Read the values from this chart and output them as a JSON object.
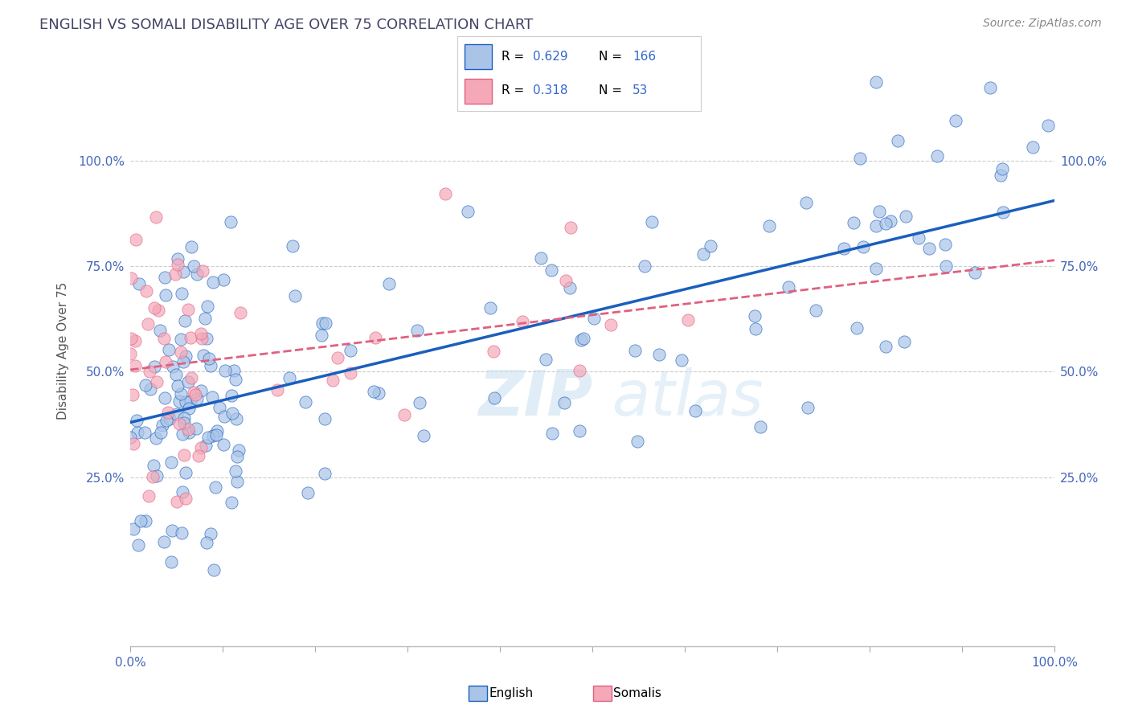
{
  "title": "ENGLISH VS SOMALI DISABILITY AGE OVER 75 CORRELATION CHART",
  "source": "Source: ZipAtlas.com",
  "ylabel": "Disability Age Over 75",
  "xlabel": "",
  "english_R": 0.629,
  "english_N": 166,
  "somali_R": 0.318,
  "somali_N": 53,
  "english_color": "#aac4e8",
  "somali_color": "#f4a8b8",
  "english_line_color": "#1a5fbd",
  "somali_line_color": "#e06080",
  "watermark_color": "#c8dff0",
  "title_color": "#444466",
  "axis_label_color": "#4466bb",
  "grid_color": "#cccccc",
  "legend_R_color": "#3366cc",
  "legend_N_color": "#3366cc",
  "background_color": "#ffffff"
}
